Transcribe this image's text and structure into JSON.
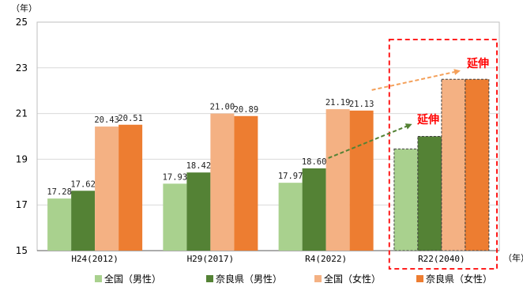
{
  "chart_data": {
    "type": "bar",
    "y_unit": "（年）",
    "x_unit": "（年）",
    "ylim": [
      15,
      25
    ],
    "yticks": [
      15,
      17,
      19,
      21,
      23,
      25
    ],
    "grid": true,
    "categories": [
      "H24(2012)",
      "H29(2017)",
      "R4(2022)",
      "R22(2040)"
    ],
    "series": [
      {
        "name": "全国（男性）",
        "color": "#a9d18e",
        "values": [
          17.28,
          17.93,
          17.97,
          19.45
        ]
      },
      {
        "name": "奈良県（男性）",
        "color": "#548235",
        "values": [
          17.62,
          18.42,
          18.6,
          20.0
        ]
      },
      {
        "name": "全国（女性）",
        "color": "#f4b183",
        "values": [
          20.43,
          21.0,
          21.19,
          22.5
        ]
      },
      {
        "name": "奈良県（女性）",
        "color": "#ed7d31",
        "values": [
          20.51,
          20.89,
          21.13,
          22.5
        ]
      }
    ],
    "data_labels": [
      [
        "17.28",
        "17.62",
        "20.43",
        "20.51"
      ],
      [
        "17.93",
        "18.42",
        "21.00",
        "20.89"
      ],
      [
        "17.97",
        "18.60",
        "21.19",
        "21.13"
      ],
      [
        "",
        "",
        "",
        ""
      ]
    ],
    "projected_category": "R22(2040)",
    "annotations": [
      {
        "text": "延伸",
        "color": "#ff0000"
      },
      {
        "text": "延伸",
        "color": "#ff0000"
      }
    ],
    "legend_position": "bottom"
  }
}
